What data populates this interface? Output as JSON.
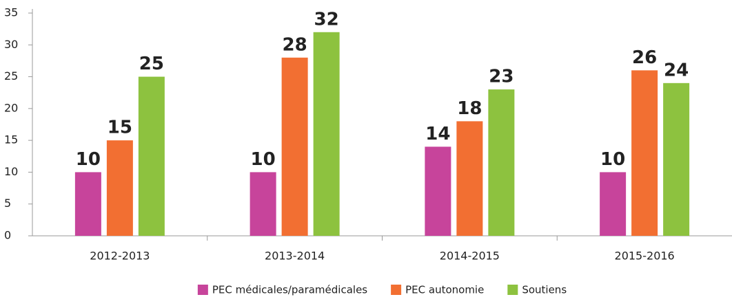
{
  "chart_data": {
    "type": "bar",
    "categories": [
      "2012-2013",
      "2013-2014",
      "2014-2015",
      "2015-2016"
    ],
    "series": [
      {
        "name": "PEC médicales/paramédicales",
        "color": "#c7449b",
        "values": [
          10,
          10,
          14,
          10
        ]
      },
      {
        "name": "PEC autonomie",
        "color": "#f26f32",
        "values": [
          15,
          28,
          18,
          26
        ]
      },
      {
        "name": "Soutiens",
        "color": "#8dc23f",
        "values": [
          25,
          32,
          23,
          24
        ]
      }
    ],
    "ylim": [
      0,
      35
    ],
    "yticks": [
      0,
      5,
      10,
      15,
      20,
      25,
      30,
      35
    ],
    "legend": "bottom",
    "grid": false
  }
}
